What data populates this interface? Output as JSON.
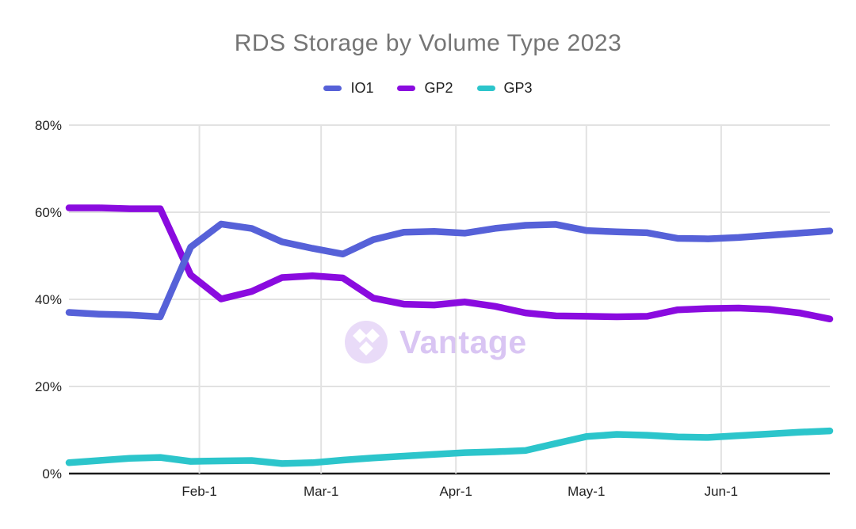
{
  "title": "RDS Storage by Volume Type 2023",
  "watermark": {
    "text": "Vantage",
    "logo_icon": "vantage-diamonds-icon",
    "circle_color": "#E9DBF8",
    "diamond_color": "#FFFFFF",
    "text_color": "#D9C5F3"
  },
  "colors": {
    "title_text": "#757575",
    "tick_text": "#212121",
    "grid": "#E2E2E2",
    "axis": "#1A1A1A",
    "background": "#FFFFFF"
  },
  "chart_data": {
    "type": "line",
    "title": "RDS Storage by Volume Type 2023",
    "unit": "%",
    "grid": true,
    "legend_position": "top",
    "ylim": [
      0,
      80
    ],
    "y_ticks": [
      {
        "label": "0%",
        "value": 0
      },
      {
        "label": "20%",
        "value": 20
      },
      {
        "label": "40%",
        "value": 40
      },
      {
        "label": "60%",
        "value": 60
      },
      {
        "label": "80%",
        "value": 80
      }
    ],
    "x_tick_labels": [
      {
        "label": "Feb-1",
        "date": "2023-02-01"
      },
      {
        "label": "Mar-1",
        "date": "2023-03-01"
      },
      {
        "label": "Apr-1",
        "date": "2023-04-01"
      },
      {
        "label": "May-1",
        "date": "2023-05-01"
      },
      {
        "label": "Jun-1",
        "date": "2023-06-01"
      }
    ],
    "x": [
      "2023-01-02",
      "2023-01-09",
      "2023-01-16",
      "2023-01-23",
      "2023-01-30",
      "2023-02-06",
      "2023-02-13",
      "2023-02-20",
      "2023-02-27",
      "2023-03-06",
      "2023-03-13",
      "2023-03-20",
      "2023-03-27",
      "2023-04-03",
      "2023-04-10",
      "2023-04-17",
      "2023-04-24",
      "2023-05-01",
      "2023-05-08",
      "2023-05-15",
      "2023-05-22",
      "2023-05-29",
      "2023-06-05",
      "2023-06-12",
      "2023-06-19",
      "2023-06-26"
    ],
    "series": [
      {
        "name": "IO1",
        "color": "#5661D8",
        "values": [
          37.0,
          36.6,
          36.4,
          36.0,
          52.0,
          57.3,
          56.3,
          53.2,
          51.7,
          50.4,
          53.7,
          55.4,
          55.6,
          55.2,
          56.3,
          57.0,
          57.2,
          55.8,
          55.5,
          55.3,
          54.0,
          53.9,
          54.2,
          54.7,
          55.2,
          55.7
        ]
      },
      {
        "name": "GP2",
        "color": "#8A0BDF",
        "values": [
          61.0,
          61.0,
          60.8,
          60.8,
          45.6,
          40.1,
          41.8,
          45.0,
          45.4,
          44.9,
          40.3,
          38.9,
          38.7,
          39.4,
          38.4,
          36.9,
          36.2,
          36.1,
          36.0,
          36.1,
          37.6,
          37.9,
          38.0,
          37.7,
          36.9,
          35.5
        ]
      },
      {
        "name": "GP3",
        "color": "#2CC5CB",
        "values": [
          2.5,
          3.0,
          3.5,
          3.7,
          2.8,
          2.9,
          3.0,
          2.3,
          2.5,
          3.1,
          3.6,
          4.0,
          4.4,
          4.8,
          5.0,
          5.3,
          6.9,
          8.5,
          9.0,
          8.8,
          8.4,
          8.3,
          8.7,
          9.1,
          9.5,
          9.8
        ]
      }
    ]
  }
}
